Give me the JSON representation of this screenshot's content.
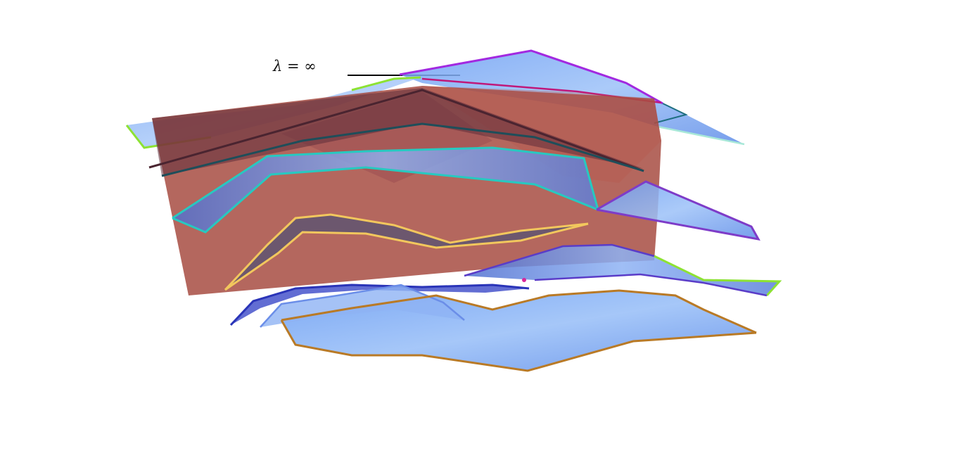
{
  "figure": {
    "label": "λ = ∞"
  },
  "colors": {
    "background": "#ffffff",
    "surface_fill": "#7aa8f5",
    "plane_fill": "#a4453a",
    "outline_purple": "#a229e0",
    "outline_magenta": "#c0187a",
    "outline_green": "#8de233",
    "outline_teal": "#27c9c0",
    "outline_darkteal": "#1e4e5a",
    "outline_yellow": "#f2c75d",
    "outline_orange": "#b97a26",
    "outline_navy": "#2a34b8",
    "outline_violet": "#7e3cc8",
    "outline_seafoam": "#a8e8d8"
  }
}
